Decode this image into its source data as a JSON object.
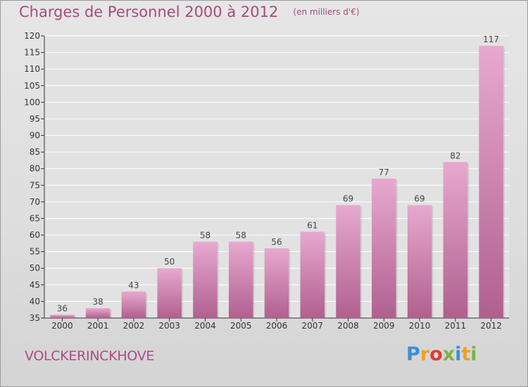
{
  "header": {
    "title": "Charges de Personnel 2000 à 2012",
    "subtitle": "(en milliers d'€)"
  },
  "footer": {
    "place": "VOLCKERINCKHOVE",
    "brand": "Proxiti"
  },
  "colors": {
    "bar_top": "#e7a9cf",
    "bar_bottom": "#b0608f",
    "title": "#a94a7e",
    "grid": "#ffffff"
  },
  "chart_data": {
    "type": "bar",
    "categories": [
      "2000",
      "2001",
      "2002",
      "2003",
      "2004",
      "2005",
      "2006",
      "2007",
      "2008",
      "2009",
      "2010",
      "2011",
      "2012"
    ],
    "values": [
      36,
      38,
      43,
      50,
      58,
      58,
      56,
      61,
      69,
      77,
      69,
      82,
      117
    ],
    "ylim": [
      35,
      120
    ],
    "yticks": [
      35,
      40,
      45,
      50,
      55,
      60,
      65,
      70,
      75,
      80,
      85,
      90,
      95,
      100,
      105,
      110,
      115,
      120
    ],
    "title": "Charges de Personnel 2000 à 2012",
    "subtitle": "(en milliers d'€)",
    "xlabel": "",
    "ylabel": "",
    "grid": true,
    "data_labels": true
  }
}
